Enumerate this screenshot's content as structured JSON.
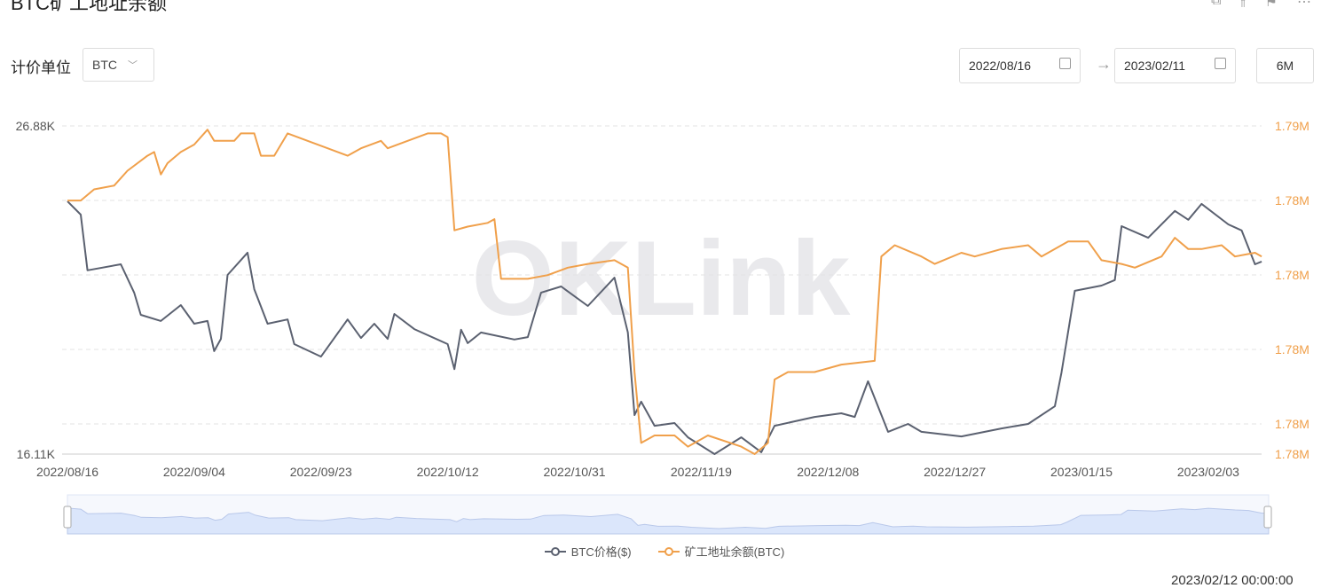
{
  "header": {
    "title": "BTC矿工地址余额",
    "icons": [
      "share-icon",
      "compare-icon",
      "bookmark-icon",
      "more-icon"
    ]
  },
  "controls": {
    "unit_label": "计价单位",
    "unit_value": "BTC",
    "start_date": "2022/08/16",
    "end_date": "2023/02/11",
    "range_button": "6M"
  },
  "watermark": "OKLink",
  "footer_text": "2023/02/12 00:00:00",
  "colors": {
    "price": "#5b6170",
    "balance": "#f0a04b",
    "navigator": "#dbe6fb"
  },
  "chart_data": {
    "type": "line",
    "x_ticks": [
      "2022/08/16",
      "2022/09/04",
      "2022/09/23",
      "2022/10/12",
      "2022/10/31",
      "2022/11/19",
      "2022/12/08",
      "2022/12/27",
      "2023/01/15",
      "2023/02/03"
    ],
    "y_left": {
      "ticks": [
        "26.88K",
        "16.11K"
      ],
      "range": [
        16.11,
        26.88
      ],
      "unit": "K"
    },
    "y_right": {
      "ticks": [
        "1.79M",
        "1.78M",
        "1.78M",
        "1.78M",
        "1.78M",
        "1.78M"
      ],
      "range": [
        1.7812,
        1.79
      ],
      "unit": "M"
    },
    "grid": true,
    "legend_position": "bottom",
    "series": [
      {
        "name": "BTC价格($)",
        "axis": "left",
        "points": [
          [
            "2022/08/16",
            24.41
          ],
          [
            "2022/08/18",
            23.97
          ],
          [
            "2022/08/19",
            22.14
          ],
          [
            "2022/08/24",
            22.34
          ],
          [
            "2022/08/26",
            21.41
          ],
          [
            "2022/08/27",
            20.68
          ],
          [
            "2022/08/30",
            20.48
          ],
          [
            "2022/09/02",
            21.0
          ],
          [
            "2022/09/04",
            20.39
          ],
          [
            "2022/09/06",
            20.48
          ],
          [
            "2022/09/07",
            19.49
          ],
          [
            "2022/09/08",
            19.89
          ],
          [
            "2022/09/09",
            21.99
          ],
          [
            "2022/09/12",
            22.72
          ],
          [
            "2022/09/13",
            21.52
          ],
          [
            "2022/09/15",
            20.39
          ],
          [
            "2022/09/18",
            20.53
          ],
          [
            "2022/09/19",
            19.72
          ],
          [
            "2022/09/23",
            19.31
          ],
          [
            "2022/09/27",
            20.53
          ],
          [
            "2022/09/29",
            19.92
          ],
          [
            "2022/10/01",
            20.39
          ],
          [
            "2022/10/03",
            19.89
          ],
          [
            "2022/10/04",
            20.71
          ],
          [
            "2022/10/07",
            20.21
          ],
          [
            "2022/10/12",
            19.72
          ],
          [
            "2022/10/13",
            18.9
          ],
          [
            "2022/10/14",
            20.19
          ],
          [
            "2022/10/15",
            19.75
          ],
          [
            "2022/10/17",
            20.1
          ],
          [
            "2022/10/22",
            19.87
          ],
          [
            "2022/10/24",
            19.95
          ],
          [
            "2022/10/26",
            21.41
          ],
          [
            "2022/10/29",
            21.61
          ],
          [
            "2022/11/02",
            20.97
          ],
          [
            "2022/11/06",
            21.9
          ],
          [
            "2022/11/08",
            20.1
          ],
          [
            "2022/11/09",
            17.39
          ],
          [
            "2022/11/10",
            17.83
          ],
          [
            "2022/11/12",
            17.04
          ],
          [
            "2022/11/15",
            17.13
          ],
          [
            "2022/11/17",
            16.66
          ],
          [
            "2022/11/21",
            16.11
          ],
          [
            "2022/11/25",
            16.66
          ],
          [
            "2022/11/28",
            16.17
          ],
          [
            "2022/11/30",
            17.04
          ],
          [
            "2022/12/06",
            17.33
          ],
          [
            "2022/12/10",
            17.45
          ],
          [
            "2022/12/12",
            17.33
          ],
          [
            "2022/12/14",
            18.5
          ],
          [
            "2022/12/17",
            16.84
          ],
          [
            "2022/12/20",
            17.1
          ],
          [
            "2022/12/22",
            16.84
          ],
          [
            "2022/12/28",
            16.69
          ],
          [
            "2023/01/03",
            16.95
          ],
          [
            "2023/01/07",
            17.1
          ],
          [
            "2023/01/11",
            17.68
          ],
          [
            "2023/01/12",
            18.79
          ],
          [
            "2023/01/14",
            21.47
          ],
          [
            "2023/01/18",
            21.64
          ],
          [
            "2023/01/20",
            21.82
          ],
          [
            "2023/01/21",
            23.59
          ],
          [
            "2023/01/25",
            23.21
          ],
          [
            "2023/01/29",
            24.09
          ],
          [
            "2023/01/31",
            23.8
          ],
          [
            "2023/02/02",
            24.32
          ],
          [
            "2023/02/06",
            23.65
          ],
          [
            "2023/02/08",
            23.45
          ],
          [
            "2023/02/10",
            22.34
          ],
          [
            "2023/02/11",
            22.43
          ]
        ]
      },
      {
        "name": "矿工地址余额(BTC)",
        "axis": "right",
        "points": [
          [
            "2022/08/16",
            1.788
          ],
          [
            "2022/08/18",
            1.788
          ],
          [
            "2022/08/20",
            1.7883
          ],
          [
            "2022/08/23",
            1.7884
          ],
          [
            "2022/08/25",
            1.7888
          ],
          [
            "2022/08/28",
            1.7892
          ],
          [
            "2022/08/29",
            1.7893
          ],
          [
            "2022/08/30",
            1.7887
          ],
          [
            "2022/08/31",
            1.789
          ],
          [
            "2022/09/02",
            1.7893
          ],
          [
            "2022/09/04",
            1.7895
          ],
          [
            "2022/09/06",
            1.7899
          ],
          [
            "2022/09/07",
            1.7896
          ],
          [
            "2022/09/10",
            1.7896
          ],
          [
            "2022/09/11",
            1.7898
          ],
          [
            "2022/09/13",
            1.7898
          ],
          [
            "2022/09/14",
            1.7892
          ],
          [
            "2022/09/16",
            1.7892
          ],
          [
            "2022/09/18",
            1.7898
          ],
          [
            "2022/09/21",
            1.7896
          ],
          [
            "2022/09/24",
            1.7894
          ],
          [
            "2022/09/27",
            1.7892
          ],
          [
            "2022/09/29",
            1.7894
          ],
          [
            "2022/10/02",
            1.7896
          ],
          [
            "2022/10/03",
            1.7894
          ],
          [
            "2022/10/06",
            1.7896
          ],
          [
            "2022/10/09",
            1.7898
          ],
          [
            "2022/10/11",
            1.7898
          ],
          [
            "2022/10/12",
            1.7897
          ],
          [
            "2022/10/13",
            1.7872
          ],
          [
            "2022/10/15",
            1.7873
          ],
          [
            "2022/10/18",
            1.7874
          ],
          [
            "2022/10/19",
            1.7875
          ],
          [
            "2022/10/20",
            1.7859
          ],
          [
            "2022/10/24",
            1.7859
          ],
          [
            "2022/10/27",
            1.786
          ],
          [
            "2022/10/30",
            1.7862
          ],
          [
            "2022/11/02",
            1.7863
          ],
          [
            "2022/11/06",
            1.7864
          ],
          [
            "2022/11/08",
            1.7862
          ],
          [
            "2022/11/09",
            1.7834
          ],
          [
            "2022/11/10",
            1.7815
          ],
          [
            "2022/11/12",
            1.7817
          ],
          [
            "2022/11/15",
            1.7817
          ],
          [
            "2022/11/17",
            1.7814
          ],
          [
            "2022/11/20",
            1.7817
          ],
          [
            "2022/11/25",
            1.7814
          ],
          [
            "2022/11/27",
            1.7812
          ],
          [
            "2022/11/29",
            1.7815
          ],
          [
            "2022/11/30",
            1.7832
          ],
          [
            "2022/12/02",
            1.7834
          ],
          [
            "2022/12/06",
            1.7834
          ],
          [
            "2022/12/10",
            1.7836
          ],
          [
            "2022/12/15",
            1.7837
          ],
          [
            "2022/12/16",
            1.7865
          ],
          [
            "2022/12/18",
            1.7868
          ],
          [
            "2022/12/22",
            1.7865
          ],
          [
            "2022/12/24",
            1.7863
          ],
          [
            "2022/12/28",
            1.7866
          ],
          [
            "2022/12/30",
            1.7865
          ],
          [
            "2023/01/03",
            1.7867
          ],
          [
            "2023/01/07",
            1.7868
          ],
          [
            "2023/01/09",
            1.7865
          ],
          [
            "2023/01/13",
            1.7869
          ],
          [
            "2023/01/16",
            1.7869
          ],
          [
            "2023/01/18",
            1.7864
          ],
          [
            "2023/01/21",
            1.7863
          ],
          [
            "2023/01/23",
            1.7862
          ],
          [
            "2023/01/27",
            1.7865
          ],
          [
            "2023/01/29",
            1.787
          ],
          [
            "2023/01/31",
            1.7867
          ],
          [
            "2023/02/02",
            1.7867
          ],
          [
            "2023/02/05",
            1.7868
          ],
          [
            "2023/02/07",
            1.7865
          ],
          [
            "2023/02/10",
            1.7866
          ],
          [
            "2023/02/11",
            1.7865
          ]
        ]
      }
    ]
  }
}
